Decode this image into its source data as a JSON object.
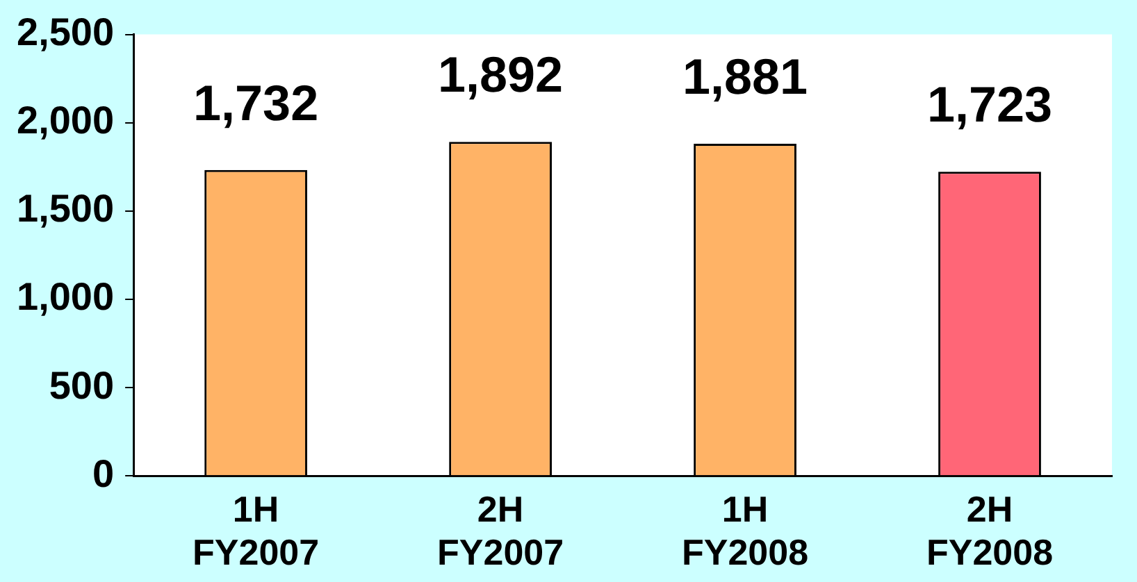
{
  "chart_data": {
    "type": "bar",
    "categories": [
      "1H\nFY2007",
      "2H\nFY2007",
      "1H\nFY2008",
      "2H\nFY2008"
    ],
    "values": [
      1732,
      1892,
      1881,
      1723
    ],
    "colors": [
      "#ffb366",
      "#ffb366",
      "#ffb366",
      "#ff6677"
    ],
    "ylim": [
      0,
      2500
    ],
    "yticks": [
      0,
      500,
      {
        "value": 1000,
        "label": "1,000"
      },
      {
        "value": 1500,
        "label": "1,500"
      },
      {
        "value": 2000,
        "label": "2,000"
      },
      {
        "value": 2500,
        "label": "2,500"
      }
    ],
    "value_labels": [
      "1,732",
      "1,892",
      "1,881",
      "1,723"
    ],
    "grid": false,
    "legend": false
  }
}
